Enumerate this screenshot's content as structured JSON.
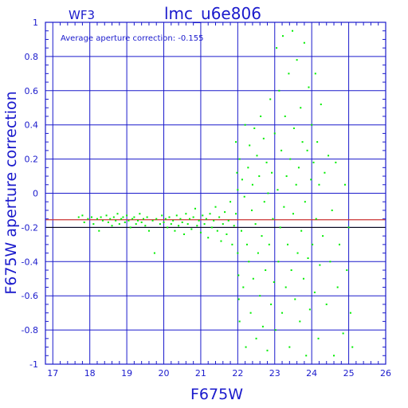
{
  "chart_data": {
    "type": "scatter",
    "title": "lmc_u6e806",
    "corner_label": "WF3",
    "annotation": "Average aperture correction: -0.155",
    "xlabel": "F675W",
    "ylabel": "F675W aperture correction",
    "xlim": [
      16.8,
      26
    ],
    "ylim": [
      -1,
      1
    ],
    "x_ticks": [
      "17",
      "18",
      "19",
      "20",
      "21",
      "22",
      "23",
      "24",
      "25",
      "26"
    ],
    "y_ticks": [
      "1",
      "0.8",
      "0.6",
      "0.4",
      "0.2",
      "0",
      "-0.2",
      "-0.4",
      "-0.6",
      "-0.8",
      "-1"
    ],
    "grid": true,
    "reference_line": {
      "y": -0.155,
      "color": "#cc3333"
    },
    "secondary_line": {
      "y": -0.2,
      "color": "#000000"
    },
    "colors": {
      "axis": "#1a1acc",
      "points": "#00ee00",
      "background": "#ffffff"
    },
    "series": [
      {
        "points": [
          [
            17.7,
            -0.14
          ],
          [
            17.8,
            -0.13
          ],
          [
            17.85,
            -0.17
          ],
          [
            17.95,
            -0.15
          ],
          [
            18.05,
            -0.14
          ],
          [
            18.1,
            -0.18
          ],
          [
            18.2,
            -0.15
          ],
          [
            18.25,
            -0.22
          ],
          [
            18.3,
            -0.14
          ],
          [
            18.35,
            -0.16
          ],
          [
            18.45,
            -0.13
          ],
          [
            18.5,
            -0.17
          ],
          [
            18.55,
            -0.15
          ],
          [
            18.6,
            -0.19
          ],
          [
            18.65,
            -0.14
          ],
          [
            18.7,
            -0.16
          ],
          [
            18.75,
            -0.12
          ],
          [
            18.8,
            -0.18
          ],
          [
            18.85,
            -0.15
          ],
          [
            18.9,
            -0.14
          ],
          [
            18.95,
            -0.17
          ],
          [
            19.0,
            -0.13
          ],
          [
            19.05,
            -0.16
          ],
          [
            19.1,
            -0.2
          ],
          [
            19.15,
            -0.15
          ],
          [
            19.2,
            -0.14
          ],
          [
            19.25,
            -0.18
          ],
          [
            19.3,
            -0.16
          ],
          [
            19.35,
            -0.12
          ],
          [
            19.4,
            -0.17
          ],
          [
            19.45,
            -0.15
          ],
          [
            19.5,
            -0.19
          ],
          [
            19.55,
            -0.14
          ],
          [
            19.6,
            -0.22
          ],
          [
            19.7,
            -0.16
          ],
          [
            19.75,
            -0.35
          ],
          [
            19.8,
            -0.15
          ],
          [
            19.9,
            -0.18
          ],
          [
            19.95,
            -0.13
          ],
          [
            20.0,
            -0.17
          ],
          [
            20.05,
            -0.15
          ],
          [
            20.1,
            -0.2
          ],
          [
            20.15,
            -0.14
          ],
          [
            20.2,
            -0.18
          ],
          [
            20.25,
            -0.16
          ],
          [
            20.3,
            -0.22
          ],
          [
            20.35,
            -0.13
          ],
          [
            20.4,
            -0.19
          ],
          [
            20.45,
            -0.15
          ],
          [
            20.5,
            -0.17
          ],
          [
            20.55,
            -0.24
          ],
          [
            20.6,
            -0.12
          ],
          [
            20.65,
            -0.18
          ],
          [
            20.7,
            -0.15
          ],
          [
            20.75,
            -0.21
          ],
          [
            20.8,
            -0.14
          ],
          [
            20.85,
            -0.09
          ],
          [
            20.9,
            -0.19
          ],
          [
            20.95,
            -0.16
          ],
          [
            21.0,
            -0.23
          ],
          [
            21.05,
            -0.13
          ],
          [
            21.1,
            -0.18
          ],
          [
            21.15,
            -0.15
          ],
          [
            21.2,
            -0.26
          ],
          [
            21.25,
            -0.12
          ],
          [
            21.3,
            -0.2
          ],
          [
            21.35,
            -0.16
          ],
          [
            21.4,
            -0.08
          ],
          [
            21.45,
            -0.22
          ],
          [
            21.5,
            -0.14
          ],
          [
            21.55,
            -0.28
          ],
          [
            21.6,
            -0.18
          ],
          [
            21.65,
            -0.11
          ],
          [
            21.7,
            -0.24
          ],
          [
            21.75,
            -0.16
          ],
          [
            21.8,
            -0.05
          ],
          [
            21.85,
            -0.3
          ],
          [
            21.9,
            -0.19
          ],
          [
            21.95,
            -0.12
          ],
          [
            22.0,
            -0.35
          ],
          [
            21.95,
            0.3
          ],
          [
            21.98,
            0.12
          ],
          [
            22.0,
            0.02
          ],
          [
            22.02,
            -0.48
          ],
          [
            22.03,
            -0.62
          ],
          [
            22.05,
            -0.75
          ],
          [
            22.05,
            0.2
          ],
          [
            22.1,
            -0.22
          ],
          [
            22.12,
            0.08
          ],
          [
            22.15,
            -0.55
          ],
          [
            22.18,
            -0.02
          ],
          [
            22.2,
            0.4
          ],
          [
            22.22,
            -0.9
          ],
          [
            22.25,
            -0.3
          ],
          [
            22.28,
            0.15
          ],
          [
            22.3,
            -0.4
          ],
          [
            22.32,
            0.28
          ],
          [
            22.35,
            -0.7
          ],
          [
            22.38,
            -0.1
          ],
          [
            22.4,
            0.05
          ],
          [
            22.42,
            -0.5
          ],
          [
            22.45,
            0.38
          ],
          [
            22.48,
            -0.18
          ],
          [
            22.5,
            -0.85
          ],
          [
            22.52,
            0.22
          ],
          [
            22.55,
            -0.35
          ],
          [
            22.58,
            0.1
          ],
          [
            22.6,
            -0.6
          ],
          [
            22.62,
            0.45
          ],
          [
            22.65,
            -0.25
          ],
          [
            22.68,
            -0.78
          ],
          [
            22.7,
            0.32
          ],
          [
            22.72,
            -0.05
          ],
          [
            22.75,
            -0.45
          ],
          [
            22.78,
            0.18
          ],
          [
            22.8,
            -0.92
          ],
          [
            22.82,
            0.0
          ],
          [
            22.85,
            -0.3
          ],
          [
            22.88,
            0.55
          ],
          [
            22.9,
            -0.65
          ],
          [
            22.92,
            0.12
          ],
          [
            22.95,
            -0.15
          ],
          [
            22.98,
            -0.52
          ],
          [
            23.0,
            0.35
          ],
          [
            23.02,
            -0.8
          ],
          [
            23.05,
            0.85
          ],
          [
            23.08,
            0.02
          ],
          [
            23.1,
            -0.4
          ],
          [
            23.12,
            0.6
          ],
          [
            23.15,
            -0.2
          ],
          [
            23.18,
            0.25
          ],
          [
            23.2,
            -0.7
          ],
          [
            23.22,
            0.92
          ],
          [
            23.25,
            -0.08
          ],
          [
            23.28,
            0.45
          ],
          [
            23.3,
            -0.55
          ],
          [
            23.32,
            0.1
          ],
          [
            23.35,
            -0.3
          ],
          [
            23.38,
            0.7
          ],
          [
            23.4,
            -0.9
          ],
          [
            23.42,
            0.2
          ],
          [
            23.45,
            -0.45
          ],
          [
            23.48,
            0.95
          ],
          [
            23.5,
            -0.12
          ],
          [
            23.52,
            0.38
          ],
          [
            23.55,
            -0.62
          ],
          [
            23.58,
            0.05
          ],
          [
            23.6,
            0.78
          ],
          [
            23.62,
            -0.35
          ],
          [
            23.65,
            0.15
          ],
          [
            23.68,
            -0.75
          ],
          [
            23.7,
            0.5
          ],
          [
            23.72,
            -0.22
          ],
          [
            23.75,
            0.3
          ],
          [
            23.78,
            -0.5
          ],
          [
            23.8,
            0.88
          ],
          [
            23.82,
            -0.05
          ],
          [
            23.85,
            -0.95
          ],
          [
            23.88,
            0.25
          ],
          [
            23.9,
            -0.38
          ],
          [
            23.92,
            0.62
          ],
          [
            23.95,
            -0.68
          ],
          [
            23.98,
            0.08
          ],
          [
            24.0,
            0.4
          ],
          [
            24.02,
            -0.3
          ],
          [
            24.05,
            0.18
          ],
          [
            24.08,
            -0.58
          ],
          [
            24.1,
            0.7
          ],
          [
            24.12,
            -0.15
          ],
          [
            24.15,
            0.3
          ],
          [
            24.18,
            -0.85
          ],
          [
            24.2,
            0.05
          ],
          [
            24.22,
            -0.42
          ],
          [
            24.25,
            0.52
          ],
          [
            24.3,
            -0.25
          ],
          [
            24.35,
            0.12
          ],
          [
            24.4,
            -0.65
          ],
          [
            24.45,
            0.22
          ],
          [
            24.5,
            -0.4
          ],
          [
            24.55,
            -0.1
          ],
          [
            24.6,
            -0.95
          ],
          [
            24.65,
            0.18
          ],
          [
            24.7,
            -0.55
          ],
          [
            24.75,
            -0.3
          ],
          [
            24.85,
            -0.82
          ],
          [
            24.9,
            0.05
          ],
          [
            24.95,
            -0.45
          ],
          [
            25.0,
            -0.2
          ],
          [
            25.05,
            -0.7
          ],
          [
            25.1,
            -0.9
          ]
        ]
      }
    ]
  }
}
